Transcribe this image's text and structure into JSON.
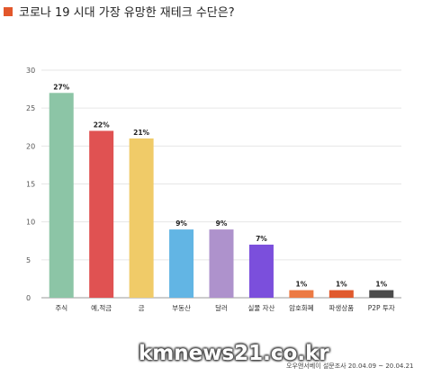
{
  "header": {
    "title": "코로나 19 시대 가장 유망한 재테크 수단은?",
    "marker_color": "#e2572b"
  },
  "chart_data": {
    "type": "bar",
    "title": "코로나 19 시대 가장 유망한 재테크 수단은?",
    "categories": [
      "주식",
      "예,적금",
      "금",
      "부동산",
      "달러",
      "실물 자산",
      "암호화폐",
      "파생상품",
      "P2P 투자"
    ],
    "values": [
      27,
      22,
      21,
      9,
      9,
      7,
      1,
      1,
      1
    ],
    "value_labels": [
      "27%",
      "22%",
      "21%",
      "9%",
      "9%",
      "7%",
      "1%",
      "1%",
      "1%"
    ],
    "colors": [
      "#8cc5a6",
      "#e05252",
      "#f0cb68",
      "#62b5e4",
      "#ae92cc",
      "#7b4fdc",
      "#ec7a44",
      "#e05a2e",
      "#4b4b4b"
    ],
    "yticks": [
      0,
      5,
      10,
      15,
      20,
      25,
      30
    ],
    "ylim": [
      0,
      30
    ],
    "grid": true,
    "xlabel": "",
    "ylabel": ""
  },
  "watermark": "kmnews21.co.kr",
  "source_note": "오우앤서베이 설문조사 20.04.09 ~ 20.04.21"
}
